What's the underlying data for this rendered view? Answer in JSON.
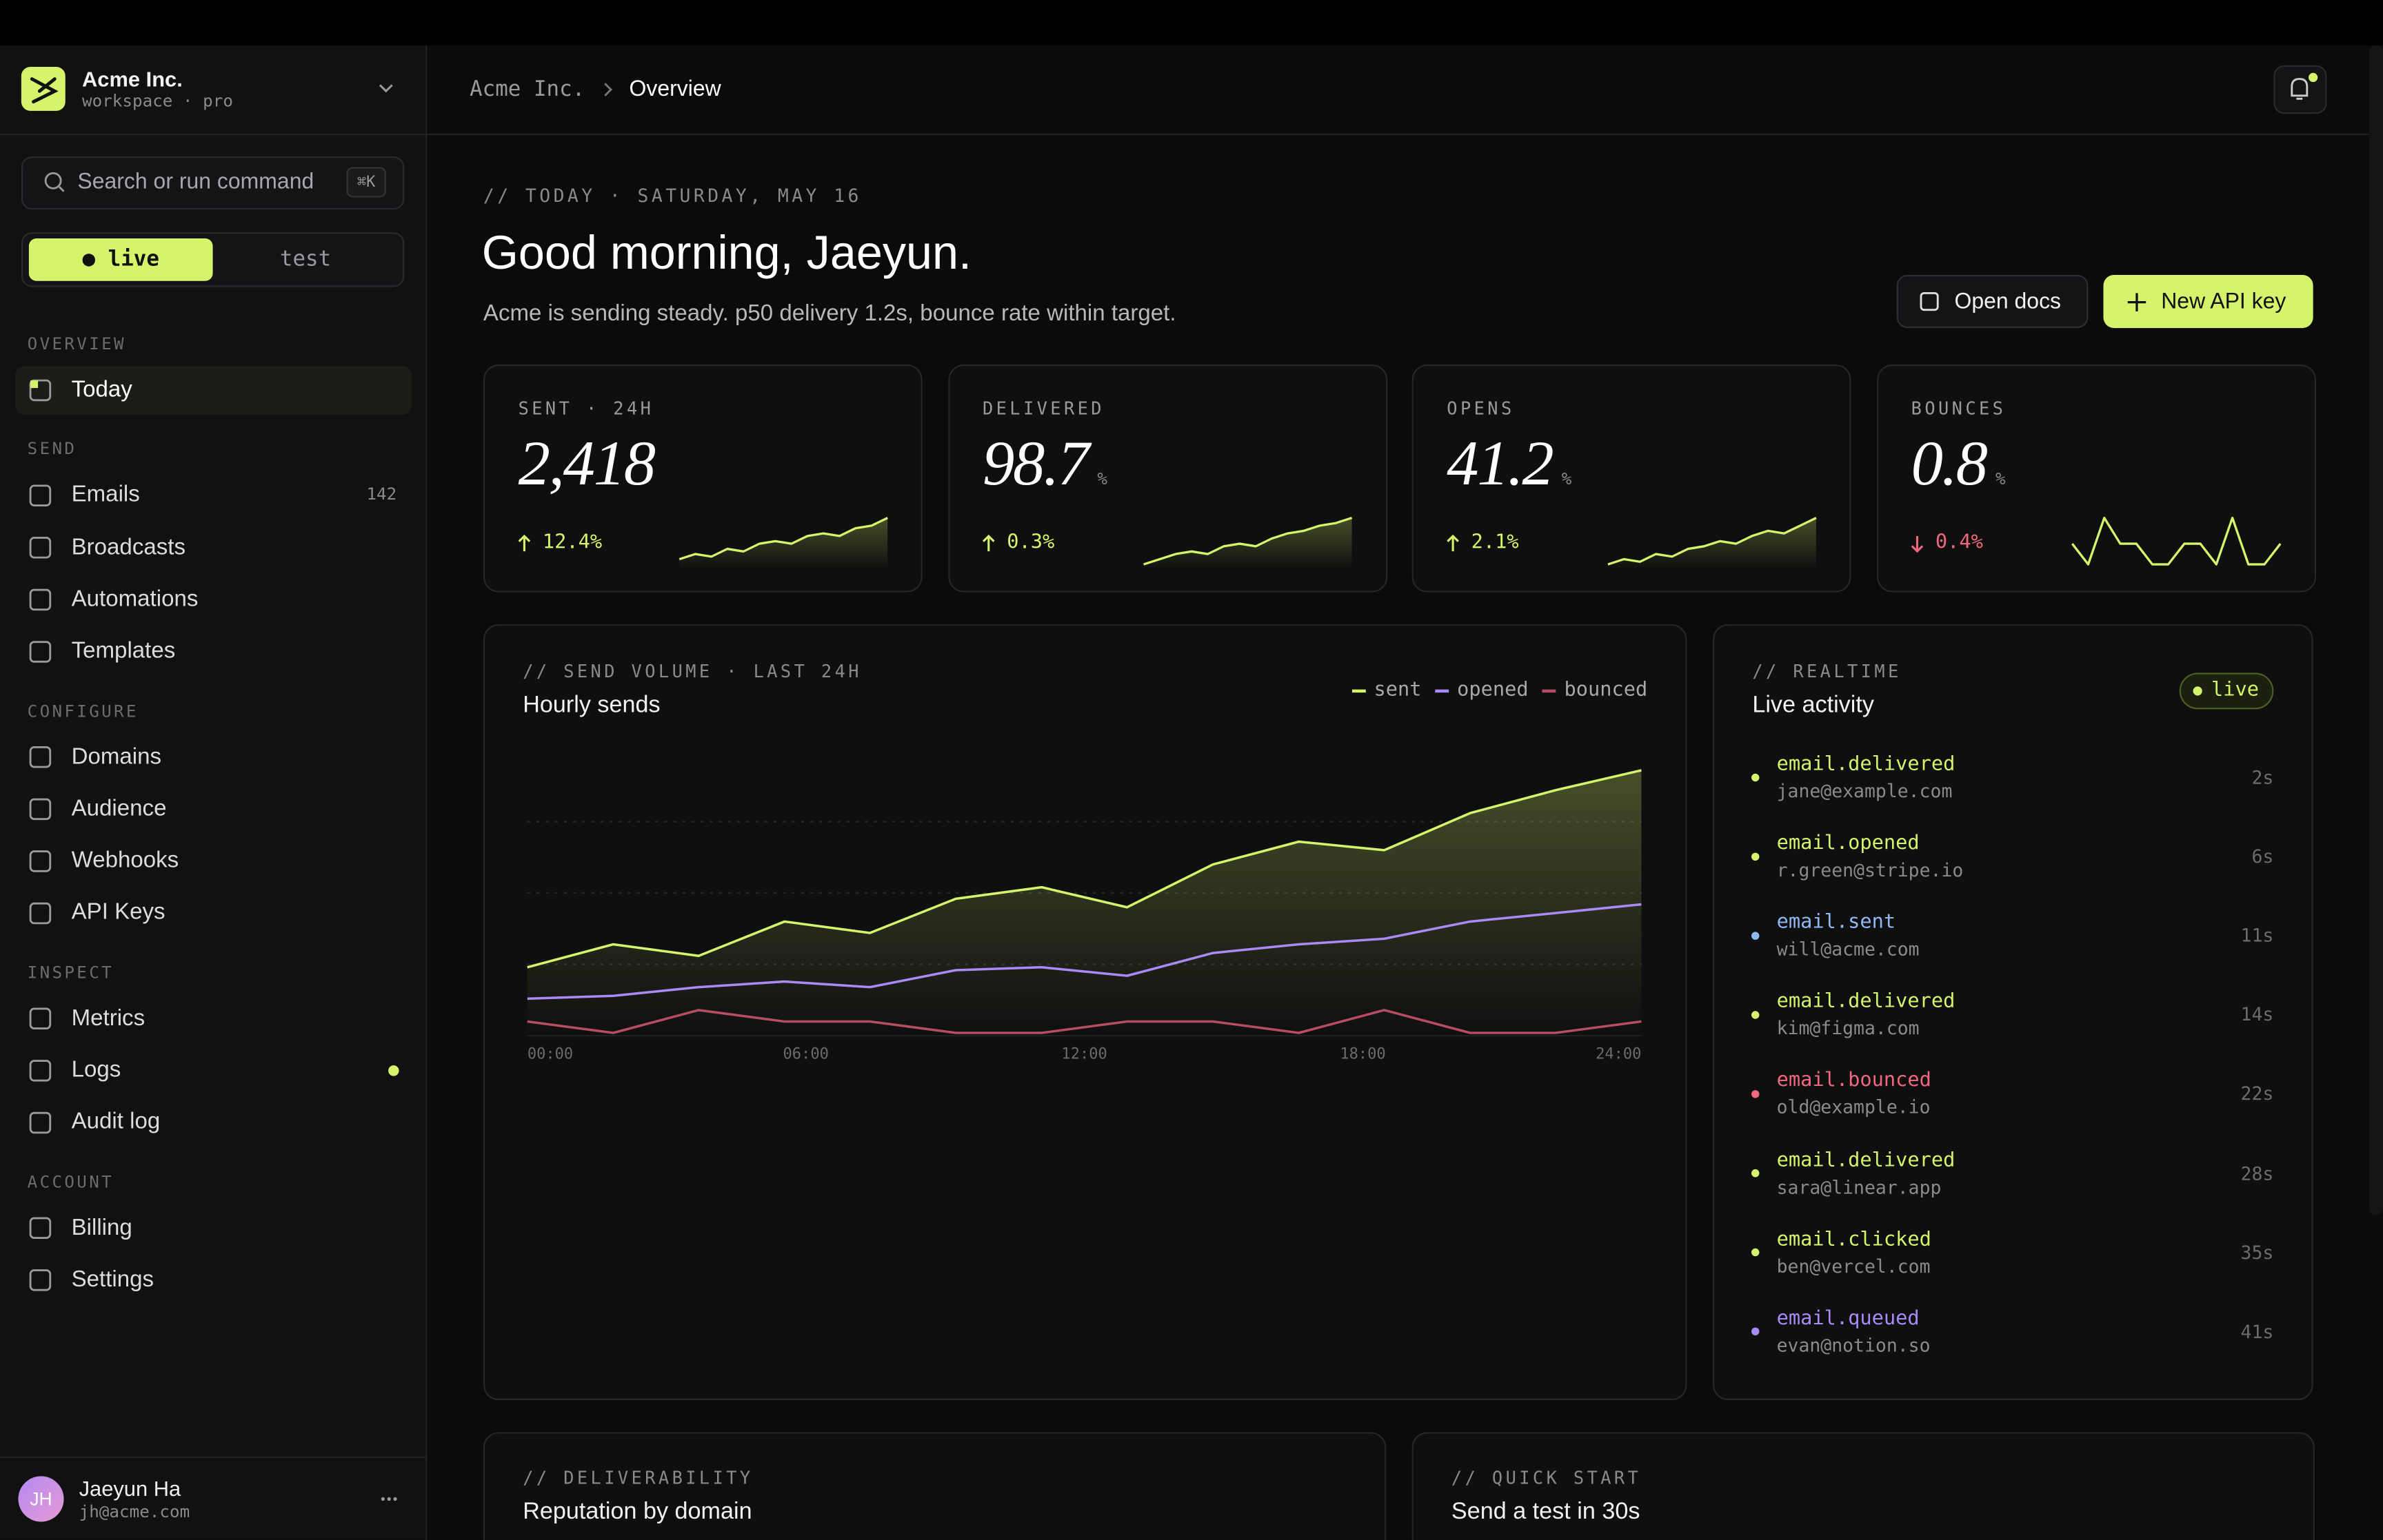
{
  "sidebar": {
    "workspace": "Acme Inc.",
    "plan": "workspace · pro",
    "search_placeholder": "Search or run command",
    "search_shortcut": "⌘K",
    "modes": [
      "● live",
      "test"
    ],
    "sections": [
      {
        "title": "OVERVIEW",
        "items": [
          {
            "label": "Today",
            "active": true
          }
        ]
      },
      {
        "title": "SEND",
        "items": [
          {
            "label": "Emails",
            "badge": "142"
          },
          {
            "label": "Broadcasts"
          },
          {
            "label": "Automations"
          },
          {
            "label": "Templates"
          }
        ]
      },
      {
        "title": "CONFIGURE",
        "items": [
          {
            "label": "Domains"
          },
          {
            "label": "Audience"
          },
          {
            "label": "Webhooks"
          },
          {
            "label": "API Keys"
          }
        ]
      },
      {
        "title": "INSPECT",
        "items": [
          {
            "label": "Metrics"
          },
          {
            "label": "Logs",
            "status_dot": true
          },
          {
            "label": "Audit log"
          }
        ]
      },
      {
        "title": "ACCOUNT",
        "items": [
          {
            "label": "Billing"
          },
          {
            "label": "Settings"
          }
        ]
      }
    ],
    "user": {
      "initials": "JH",
      "name": "Jaeyun Ha",
      "email": "jh@acme.com"
    }
  },
  "header": {
    "breadcrumb": [
      "Acme Inc.",
      "Overview"
    ]
  },
  "hero": {
    "eyebrow": "// TODAY · SATURDAY, MAY 16",
    "title": "Good morning, Jaeyun.",
    "subtitle": "Acme is sending steady. p50 delivery 1.2s, bounce rate within target.",
    "buttons": [
      "Open docs",
      "New API key"
    ]
  },
  "spark_ylim": [
    0,
    10
  ],
  "stats": [
    {
      "label": "SENT · 24H",
      "value": "2,418",
      "delta": "12.4%",
      "trend": "up",
      "spark": [
        2,
        3,
        2.5,
        4,
        3.5,
        5,
        5.5,
        5,
        6.5,
        7,
        6.5,
        8,
        8.5,
        10
      ]
    },
    {
      "label": "DELIVERED",
      "value": "98.7",
      "unit": "%",
      "delta": "0.3%",
      "trend": "up",
      "spark": [
        1,
        2,
        3,
        3.5,
        3,
        4.5,
        5,
        4.5,
        6,
        7,
        7.5,
        8.5,
        9,
        10
      ]
    },
    {
      "label": "OPENS",
      "value": "41.2",
      "unit": "%",
      "delta": "2.1%",
      "trend": "up",
      "spark": [
        1,
        2,
        1.5,
        3,
        2.5,
        4,
        4.5,
        5.5,
        5,
        6.5,
        7.5,
        7,
        8.5,
        10
      ]
    },
    {
      "label": "BOUNCES",
      "value": "0.8",
      "unit": "%",
      "delta": "0.4%",
      "trend": "down",
      "spark": [
        5,
        1,
        10,
        5,
        5,
        1,
        1,
        5,
        5,
        1,
        10,
        1,
        1,
        5
      ]
    }
  ],
  "chart_data": {
    "type": "line",
    "eyebrow": "// SEND VOLUME · LAST 24H",
    "title": "Hourly sends",
    "x": [
      0,
      1.85,
      3.69,
      5.54,
      7.38,
      9.23,
      11.08,
      12.92,
      14.77,
      16.62,
      18.46,
      20.31,
      22.15,
      24
    ],
    "xlim": [
      0,
      24
    ],
    "xticks": [
      {
        "value": 0,
        "label": "00:00"
      },
      {
        "value": 6,
        "label": "06:00"
      },
      {
        "value": 12,
        "label": "12:00"
      },
      {
        "value": 18,
        "label": "18:00"
      },
      {
        "value": 24,
        "label": "24:00"
      }
    ],
    "ylim": [
      0,
      100
    ],
    "yticks": [
      25,
      50,
      75
    ],
    "grid": true,
    "area": true,
    "series": [
      {
        "name": "sent",
        "color": "#d6f46b",
        "values": [
          24,
          32,
          28,
          40,
          36,
          48,
          52,
          45,
          60,
          68,
          65,
          78,
          86,
          93
        ]
      },
      {
        "name": "opened",
        "color": "#a98bf7",
        "values": [
          13,
          14,
          17,
          19,
          17,
          23,
          24,
          21,
          29,
          32,
          34,
          40,
          43,
          46
        ]
      },
      {
        "name": "bounced",
        "color": "#b84c64",
        "values": [
          5,
          1,
          9,
          5,
          5,
          1,
          1,
          5,
          5,
          1,
          9,
          1,
          1,
          5
        ]
      }
    ]
  },
  "activity": {
    "eyebrow": "// REALTIME",
    "title": "Live activity",
    "status": "live",
    "events": [
      {
        "event": "email.delivered",
        "recipient": "jane@example.com",
        "time": "2s",
        "color": "#d6f46b"
      },
      {
        "event": "email.opened",
        "recipient": "r.green@stripe.io",
        "time": "6s",
        "color": "#d6f46b"
      },
      {
        "event": "email.sent",
        "recipient": "will@acme.com",
        "time": "11s",
        "color": "#8fb8f5"
      },
      {
        "event": "email.delivered",
        "recipient": "kim@figma.com",
        "time": "14s",
        "color": "#d6f46b"
      },
      {
        "event": "email.bounced",
        "recipient": "old@example.io",
        "time": "22s",
        "color": "#f0687e"
      },
      {
        "event": "email.delivered",
        "recipient": "sara@linear.app",
        "time": "28s",
        "color": "#d6f46b"
      },
      {
        "event": "email.clicked",
        "recipient": "ben@vercel.com",
        "time": "35s",
        "color": "#d6f46b"
      },
      {
        "event": "email.queued",
        "recipient": "evan@notion.so",
        "time": "41s",
        "color": "#a98bf7"
      }
    ]
  },
  "bottom_cards": [
    {
      "eyebrow": "// DELIVERABILITY",
      "title": "Reputation by domain"
    },
    {
      "eyebrow": "// QUICK START",
      "title": "Send a test in 30s"
    }
  ]
}
